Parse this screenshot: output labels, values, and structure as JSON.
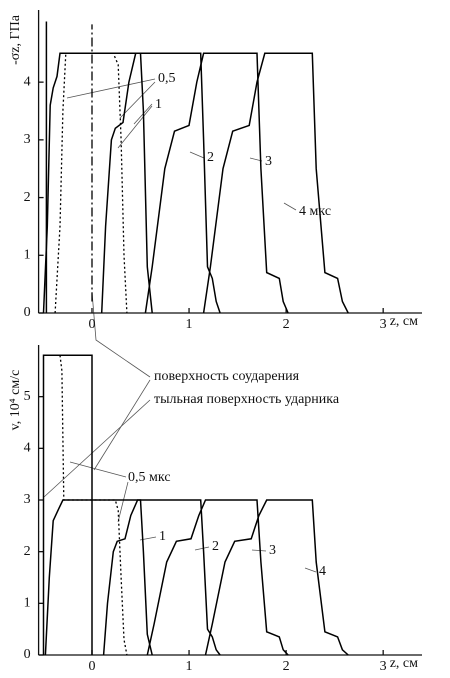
{
  "chart_data": [
    {
      "type": "line",
      "ylabel": "-σz, ГПа",
      "xlabel": "z, см",
      "xlim": [
        -0.55,
        3.4
      ],
      "ylim": [
        0,
        5.25
      ],
      "xticks": [
        0,
        1,
        2,
        3
      ],
      "yticks": [
        0,
        1,
        2,
        3,
        4
      ],
      "series": [
        {
          "style": "solid",
          "color": "#000",
          "x": [
            -0.47,
            -0.47
          ],
          "values": [
            0,
            5.05
          ]
        },
        {
          "style": "dashdot",
          "color": "#000",
          "x": [
            0,
            0
          ],
          "values": [
            0.2,
            5.0
          ]
        },
        {
          "style": "solid",
          "color": "#000",
          "x": [
            -0.5,
            -0.46,
            -0.43,
            -0.4,
            -0.36,
            -0.33,
            0.5,
            0.53,
            0.57,
            0.62
          ],
          "values": [
            0,
            1.5,
            3.6,
            3.9,
            4.1,
            4.5,
            4.5,
            3.5,
            0.8,
            0
          ]
        },
        {
          "style": "dotted",
          "color": "#000",
          "x": [
            -0.38,
            -0.33,
            -0.3,
            -0.27,
            0.22,
            0.27,
            0.3,
            0.33,
            0.36
          ],
          "values": [
            0,
            1.5,
            3.5,
            4.5,
            4.5,
            4.3,
            3,
            1,
            0
          ]
        },
        {
          "style": "solid",
          "color": "#000",
          "x": [
            0.1,
            0.14,
            0.2,
            0.24,
            0.32,
            0.38,
            0.45,
            1.12,
            1.15,
            1.19,
            1.24,
            1.28,
            1.32
          ],
          "values": [
            0,
            1.5,
            3.0,
            3.2,
            3.3,
            4.0,
            4.5,
            4.5,
            3,
            0.8,
            0.6,
            0.2,
            0
          ]
        },
        {
          "style": "solid",
          "color": "#000",
          "x": [
            0.55,
            0.62,
            0.75,
            0.85,
            1.0,
            1.08,
            1.15,
            1.7,
            1.74,
            1.8,
            1.93,
            1.97,
            2.02
          ],
          "values": [
            0,
            0.8,
            2.5,
            3.15,
            3.25,
            4.0,
            4.5,
            4.5,
            2.5,
            0.7,
            0.6,
            0.2,
            0
          ]
        },
        {
          "style": "solid",
          "color": "#000",
          "x": [
            1.15,
            1.22,
            1.35,
            1.45,
            1.62,
            1.7,
            1.78,
            2.27,
            2.31,
            2.4,
            2.53,
            2.58,
            2.64
          ],
          "values": [
            0,
            0.8,
            2.5,
            3.15,
            3.25,
            4.0,
            4.5,
            4.5,
            2.5,
            0.7,
            0.6,
            0.2,
            0
          ]
        }
      ],
      "annotations": [
        "0,5",
        "1",
        "2",
        "3",
        "4 мкс"
      ]
    },
    {
      "type": "line",
      "ylabel": "v, 10⁴ см/с",
      "xlabel": "z, см",
      "xlim": [
        -0.55,
        3.4
      ],
      "ylim": [
        0,
        6.0
      ],
      "xticks": [
        0,
        1,
        2,
        3
      ],
      "yticks": [
        0,
        1,
        2,
        3,
        4,
        5
      ],
      "series": [
        {
          "style": "solid",
          "color": "#000",
          "x": [
            -0.5,
            -0.5,
            0,
            0
          ],
          "values": [
            0,
            5.8,
            5.8,
            0
          ]
        },
        {
          "style": "solid",
          "color": "#000",
          "x": [
            -0.48,
            -0.44,
            -0.4,
            -0.35,
            -0.3,
            0.5,
            0.53,
            0.57,
            0.62
          ],
          "values": [
            0,
            1.5,
            2.6,
            2.8,
            3.0,
            3.0,
            2.0,
            0.4,
            0
          ]
        },
        {
          "style": "dotted",
          "color": "#000",
          "x": [
            -0.33,
            -0.31,
            -0.29,
            0.24,
            0.27,
            0.3,
            0.33,
            0.36
          ],
          "values": [
            5.8,
            5.5,
            3.0,
            3.0,
            2.8,
            1.5,
            0.3,
            0
          ]
        },
        {
          "style": "solid",
          "color": "#000",
          "x": [
            0.12,
            0.16,
            0.22,
            0.26,
            0.34,
            0.4,
            0.47,
            1.12,
            1.15,
            1.19,
            1.24,
            1.28,
            1.32
          ],
          "values": [
            0,
            1.0,
            2.0,
            2.2,
            2.25,
            2.7,
            3.0,
            3.0,
            2,
            0.5,
            0.35,
            0.1,
            0
          ]
        },
        {
          "style": "solid",
          "color": "#000",
          "x": [
            0.57,
            0.64,
            0.77,
            0.87,
            1.02,
            1.1,
            1.17,
            1.7,
            1.74,
            1.8,
            1.93,
            1.97,
            2.02
          ],
          "values": [
            0,
            0.6,
            1.8,
            2.2,
            2.25,
            2.7,
            3.0,
            3.0,
            1.8,
            0.45,
            0.35,
            0.1,
            0
          ]
        },
        {
          "style": "solid",
          "color": "#000",
          "x": [
            1.17,
            1.24,
            1.37,
            1.47,
            1.64,
            1.72,
            1.8,
            2.27,
            2.31,
            2.4,
            2.53,
            2.58,
            2.64
          ],
          "values": [
            0,
            0.6,
            1.8,
            2.2,
            2.25,
            2.7,
            3.0,
            3.0,
            1.8,
            0.45,
            0.35,
            0.1,
            0
          ]
        }
      ],
      "annotations": [
        "поверхность соударения",
        "тыльная поверхность ударника",
        "0,5 мкс",
        "1",
        "2",
        "3",
        "4"
      ]
    }
  ]
}
